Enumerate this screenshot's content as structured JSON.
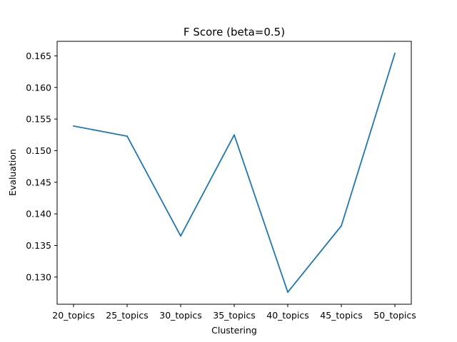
{
  "chart_data": {
    "type": "line",
    "title": "F Score (beta=0.5)",
    "xlabel": "Clustering",
    "ylabel": "Evaluation",
    "categories": [
      "20_topics",
      "25_topics",
      "30_topics",
      "35_topics",
      "40_topics",
      "45_topics",
      "50_topics"
    ],
    "series": [
      {
        "values": [
          0.1539,
          0.1523,
          0.1365,
          0.1525,
          0.1276,
          0.1381,
          0.1654
        ],
        "color": "#1f77b4"
      }
    ],
    "ylim": [
      0.1257,
      0.1673
    ],
    "yticks": [
      0.13,
      0.135,
      0.14,
      0.145,
      0.15,
      0.155,
      0.16,
      0.165
    ],
    "ytick_labels": [
      "0.130",
      "0.135",
      "0.140",
      "0.145",
      "0.150",
      "0.155",
      "0.160",
      "0.165"
    ],
    "grid": false,
    "legend": "none"
  }
}
